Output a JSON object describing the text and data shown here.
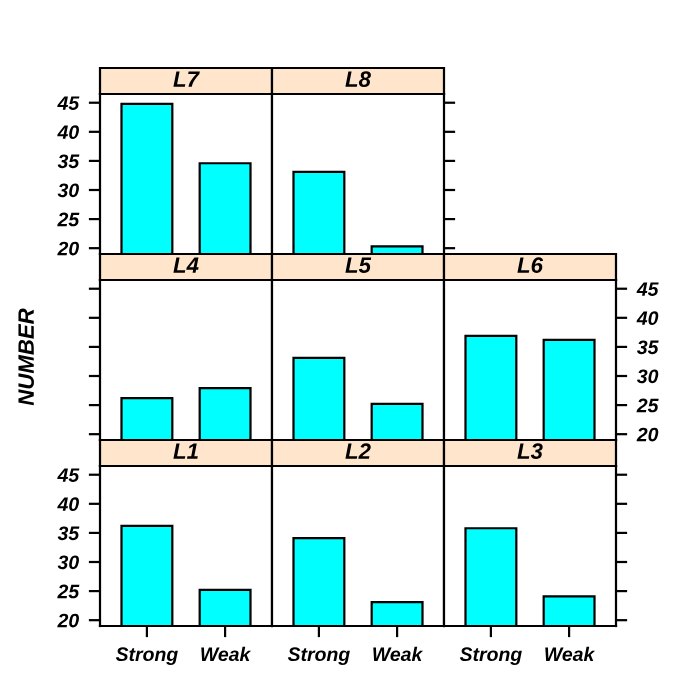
{
  "chart_data": [
    {
      "type": "bar",
      "title": "L1",
      "categories": [
        "Strong",
        "Weak"
      ],
      "values": [
        36.2,
        25.2
      ],
      "color": "#00ffff",
      "ylim": [
        19,
        46.5
      ],
      "yticks": [
        20,
        25,
        30,
        35,
        40,
        45
      ]
    },
    {
      "type": "bar",
      "title": "L2",
      "categories": [
        "Strong",
        "Weak"
      ],
      "values": [
        34.1,
        23.1
      ],
      "color": "#00ffff",
      "ylim": [
        19,
        46.5
      ],
      "yticks": [
        20,
        25,
        30,
        35,
        40,
        45
      ],
      "tick_labels": "x"
    },
    {
      "type": "bar",
      "title": "L3",
      "categories": [
        "Strong",
        "Weak"
      ],
      "values": [
        35.8,
        24.1
      ],
      "color": "#00ffff",
      "ylim": [
        19,
        46.5
      ],
      "yticks": [
        20,
        25,
        30,
        35,
        40,
        45
      ],
      "tick_labels": "x"
    },
    {
      "type": "bar",
      "title": "L4",
      "ylabel": "NUMBER",
      "categories": [
        null,
        null
      ],
      "values": [
        26.2,
        27.9
      ],
      "color": "#00ffff",
      "ylim": [
        19,
        46.5
      ],
      "yticks": [
        20,
        25,
        30,
        35,
        40,
        45
      ],
      "tick_labels": false
    },
    {
      "type": "bar",
      "title": "L5",
      "categories": [
        null,
        null
      ],
      "values": [
        33.1,
        25.2
      ],
      "color": "#00ffff",
      "ylim": [
        19,
        46.5
      ],
      "yticks": [
        20,
        25,
        30,
        35,
        40,
        45
      ],
      "tick_labels": false
    },
    {
      "type": "bar",
      "title": "L6",
      "categories": [
        null,
        null
      ],
      "values": [
        36.9,
        36.2
      ],
      "color": "#00ffff",
      "ylim": [
        19,
        46.5
      ],
      "yticks": [
        20,
        25,
        30,
        35,
        40,
        45
      ],
      "tick_labels": "y"
    },
    {
      "type": "bar",
      "title": "L7",
      "categories": [
        null,
        null
      ],
      "values": [
        44.8,
        34.6
      ],
      "color": "#00ffff",
      "ylim": [
        19,
        46.5
      ],
      "yticks": [
        20,
        25,
        30,
        35,
        40,
        45
      ],
      "tick_labels": "y"
    },
    {
      "type": "bar",
      "title": "L8",
      "categories": [
        null,
        null
      ],
      "values": [
        33.1,
        20.3
      ],
      "color": "#00ffff",
      "ylim": [
        19,
        46.5
      ],
      "yticks": [
        20,
        25,
        30,
        35,
        40,
        45
      ],
      "tick_labels": false
    }
  ]
}
